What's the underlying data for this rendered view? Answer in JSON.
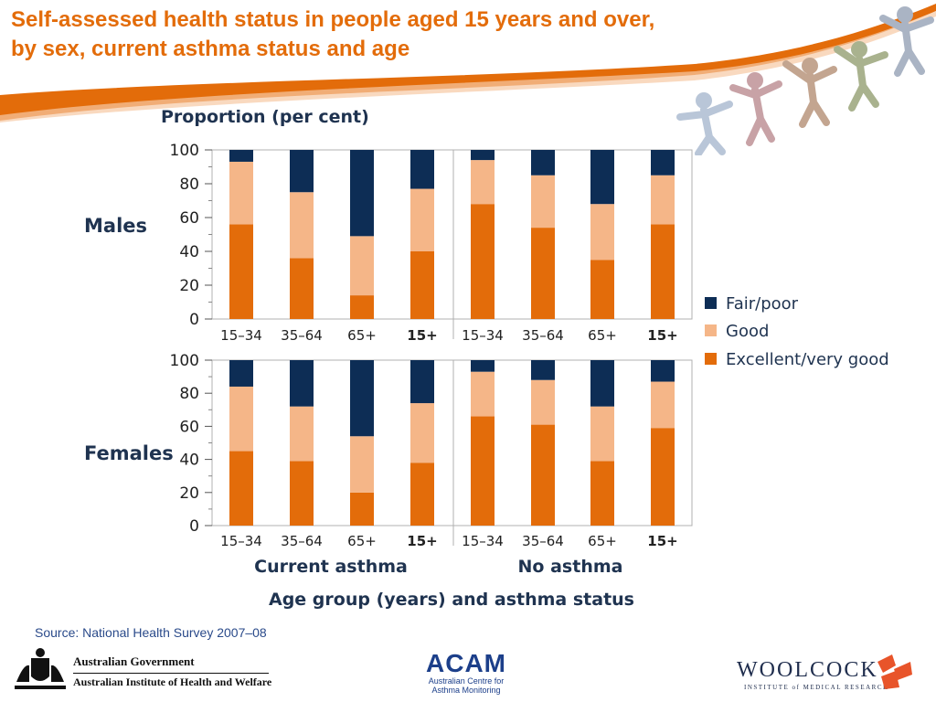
{
  "slide": {
    "title_line1": "Self-assessed health status in people aged 15 years and over,",
    "title_line2": "by sex, current asthma status and age",
    "source": "Source: National Health Survey 2007–08"
  },
  "colors": {
    "title": "#e36c0a",
    "excellent": "#e36c0a",
    "good": "#f5b688",
    "fair_poor": "#0d2d55",
    "axis_text": "#1f3350",
    "source_text": "#2a4a8a"
  },
  "chart_data": {
    "type": "bar",
    "stacked": true,
    "ylabel": "Proportion (per cent)",
    "xlabel": "Age group (years) and asthma status",
    "ylim": [
      0,
      100
    ],
    "yticks": [
      0,
      20,
      40,
      60,
      80,
      100
    ],
    "categories": [
      "15–34",
      "35–64",
      "65+",
      "15+"
    ],
    "bold_categories": [
      "15+"
    ],
    "groups": [
      "Current asthma",
      "No asthma"
    ],
    "legend": {
      "placement": "right",
      "entries": [
        "Fair/poor",
        "Good",
        "Excellent/very good"
      ]
    },
    "panels": [
      {
        "label": "Males",
        "groups": [
          {
            "name": "Current asthma",
            "series": [
              {
                "name": "Excellent/very good",
                "values": [
                  56,
                  36,
                  14,
                  40
                ]
              },
              {
                "name": "Good",
                "values": [
                  37,
                  39,
                  35,
                  37
                ]
              },
              {
                "name": "Fair/poor",
                "values": [
                  7,
                  25,
                  51,
                  23
                ]
              }
            ]
          },
          {
            "name": "No asthma",
            "series": [
              {
                "name": "Excellent/very good",
                "values": [
                  68,
                  54,
                  35,
                  56
                ]
              },
              {
                "name": "Good",
                "values": [
                  26,
                  31,
                  33,
                  29
                ]
              },
              {
                "name": "Fair/poor",
                "values": [
                  6,
                  15,
                  32,
                  15
                ]
              }
            ]
          }
        ]
      },
      {
        "label": "Females",
        "groups": [
          {
            "name": "Current asthma",
            "series": [
              {
                "name": "Excellent/very good",
                "values": [
                  45,
                  39,
                  20,
                  38
                ]
              },
              {
                "name": "Good",
                "values": [
                  39,
                  33,
                  34,
                  36
                ]
              },
              {
                "name": "Fair/poor",
                "values": [
                  16,
                  28,
                  46,
                  26
                ]
              }
            ]
          },
          {
            "name": "No asthma",
            "series": [
              {
                "name": "Excellent/very good",
                "values": [
                  66,
                  61,
                  39,
                  59
                ]
              },
              {
                "name": "Good",
                "values": [
                  27,
                  27,
                  33,
                  28
                ]
              },
              {
                "name": "Fair/poor",
                "values": [
                  7,
                  12,
                  28,
                  13
                ]
              }
            ]
          }
        ]
      }
    ]
  },
  "footer": {
    "gov_line1": "Australian Government",
    "gov_line2": "Australian Institute of Health and Welfare",
    "acam_word": "ACAM",
    "acam_sub1": "Australian Centre for",
    "acam_sub2": "Asthma Monitoring",
    "woolcock_word": "WOOLCOCK",
    "woolcock_sub": "INSTITUTE of MEDICAL RESEARCH"
  }
}
